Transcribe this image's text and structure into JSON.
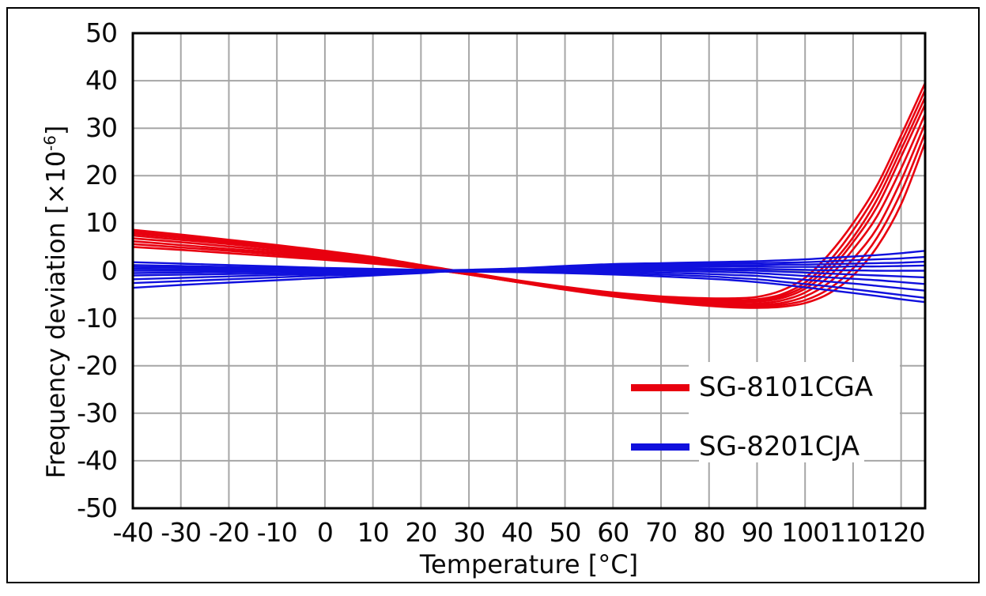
{
  "page": {
    "background_color": "#ffffff",
    "outer_border_color": "#000000"
  },
  "chart_data": {
    "type": "line",
    "title": "",
    "xlabel": "Temperature [°C]",
    "ylabel": "Frequency deviation [×10⁻⁶]",
    "ylabel_parts": {
      "prefix": "Frequency deviation [×10",
      "sup": "-6",
      "suffix": "]"
    },
    "xlim": [
      -40,
      125
    ],
    "ylim": [
      -50,
      50
    ],
    "grid": true,
    "legend_position": "inside-bottom-right",
    "x_ticks": [
      -40,
      -30,
      -20,
      -10,
      0,
      10,
      20,
      30,
      40,
      50,
      60,
      70,
      80,
      90,
      100,
      110,
      120
    ],
    "x_tick_labels": [
      "-40",
      "-30",
      "-20",
      "-10",
      "0",
      "10",
      "20",
      "30",
      "40",
      "50",
      "60",
      "70",
      "80",
      "90",
      "100",
      "110",
      "120"
    ],
    "y_ticks": [
      50,
      40,
      30,
      20,
      10,
      0,
      -10,
      -20,
      -30,
      -40,
      -50
    ],
    "y_tick_labels": [
      "50",
      "40",
      "30",
      "20",
      "10",
      "0",
      "-10",
      "-20",
      "-30",
      "-40",
      "-50"
    ],
    "colors": {
      "grid": "#a6a6a6",
      "axis": "#000000",
      "red_series": "#e8000f",
      "blue_series": "#1010dd"
    },
    "x": [
      -40,
      -30,
      -20,
      -10,
      0,
      10,
      20,
      25,
      30,
      40,
      50,
      60,
      70,
      80,
      85,
      90,
      95,
      100,
      105,
      110,
      115,
      120,
      125
    ],
    "series": [
      {
        "name": "SG-8101CGA",
        "color_key": "red_series",
        "stroke_width": 2.6,
        "lines": [
          [
            8.6,
            7.6,
            6.5,
            5.4,
            4.2,
            2.9,
            1.2,
            0.4,
            -0.4,
            -2.0,
            -3.4,
            -4.6,
            -5.4,
            -5.8,
            -5.8,
            -5.5,
            -4.2,
            -1.5,
            3.5,
            10.0,
            18.0,
            28.5,
            39.5
          ],
          [
            8.2,
            7.2,
            6.2,
            5.1,
            3.9,
            2.6,
            1.0,
            0.2,
            -0.5,
            -2.1,
            -3.6,
            -4.8,
            -5.6,
            -6.1,
            -6.2,
            -6.0,
            -5.0,
            -2.5,
            2.0,
            8.5,
            16.5,
            27.0,
            38.0
          ],
          [
            7.8,
            6.9,
            5.9,
            4.9,
            3.7,
            2.5,
            1.0,
            0.2,
            -0.6,
            -2.1,
            -3.6,
            -4.9,
            -5.8,
            -6.3,
            -6.4,
            -6.3,
            -5.4,
            -3.2,
            1.0,
            7.0,
            15.0,
            25.5,
            36.5
          ],
          [
            7.4,
            6.5,
            5.6,
            4.6,
            3.5,
            2.3,
            0.9,
            0.1,
            -0.6,
            -2.2,
            -3.7,
            -5.0,
            -5.9,
            -6.5,
            -6.6,
            -6.5,
            -5.8,
            -3.8,
            0.0,
            6.0,
            13.5,
            24.0,
            35.0
          ],
          [
            6.8,
            6.0,
            5.1,
            4.2,
            3.2,
            2.1,
            0.8,
            0.0,
            -0.7,
            -2.3,
            -3.8,
            -5.1,
            -6.1,
            -6.8,
            -7.0,
            -6.9,
            -6.3,
            -4.6,
            -1.2,
            4.5,
            11.5,
            21.5,
            33.0
          ],
          [
            6.2,
            5.4,
            4.6,
            3.8,
            2.9,
            1.9,
            0.7,
            0.0,
            -0.7,
            -2.3,
            -3.9,
            -5.2,
            -6.3,
            -7.0,
            -7.2,
            -7.2,
            -6.8,
            -5.4,
            -2.5,
            2.5,
            9.0,
            19.0,
            31.0
          ],
          [
            5.6,
            4.9,
            4.2,
            3.4,
            2.6,
            1.7,
            0.6,
            -0.1,
            -0.8,
            -2.4,
            -3.9,
            -5.3,
            -6.4,
            -7.2,
            -7.5,
            -7.5,
            -7.2,
            -6.2,
            -3.8,
            0.5,
            7.0,
            16.5,
            29.0
          ],
          [
            5.0,
            4.4,
            3.7,
            3.0,
            2.3,
            1.5,
            0.5,
            -0.1,
            -0.8,
            -2.4,
            -4.0,
            -5.4,
            -6.5,
            -7.4,
            -7.7,
            -7.8,
            -7.6,
            -6.8,
            -4.8,
            -1.0,
            5.0,
            14.0,
            27.0
          ]
        ]
      },
      {
        "name": "SG-8201CJA",
        "color_key": "blue_series",
        "stroke_width": 2.4,
        "lines": [
          [
            1.8,
            1.5,
            1.2,
            0.9,
            0.6,
            0.4,
            0.2,
            0.1,
            0.2,
            0.5,
            1.0,
            1.4,
            1.6,
            1.8,
            1.9,
            2.0,
            2.2,
            2.4,
            2.7,
            3.0,
            3.3,
            3.7,
            4.2
          ],
          [
            1.2,
            1.0,
            0.8,
            0.6,
            0.45,
            0.3,
            0.15,
            0.1,
            0.15,
            0.4,
            0.8,
            1.1,
            1.3,
            1.5,
            1.55,
            1.6,
            1.7,
            1.8,
            2.0,
            2.2,
            2.4,
            2.6,
            2.9
          ],
          [
            0.8,
            0.7,
            0.55,
            0.45,
            0.35,
            0.25,
            0.1,
            0.05,
            0.1,
            0.3,
            0.6,
            0.9,
            1.1,
            1.2,
            1.2,
            1.2,
            1.3,
            1.3,
            1.4,
            1.5,
            1.6,
            1.7,
            1.9
          ],
          [
            0.4,
            0.35,
            0.3,
            0.25,
            0.2,
            0.1,
            0.05,
            0,
            0.05,
            0.2,
            0.5,
            0.7,
            0.8,
            0.9,
            0.9,
            0.85,
            0.8,
            0.8,
            0.8,
            0.9,
            0.9,
            1.0,
            1.1
          ],
          [
            0,
            0,
            0,
            0,
            0,
            0,
            0,
            0,
            0,
            0.1,
            0.3,
            0.5,
            0.6,
            0.5,
            0.45,
            0.4,
            0.3,
            0.2,
            0.1,
            0.1,
            0,
            0,
            0
          ],
          [
            -0.5,
            -0.4,
            -0.3,
            -0.2,
            -0.15,
            -0.1,
            -0.05,
            0,
            0,
            0.05,
            0.2,
            0.3,
            0.3,
            0.2,
            0.1,
            0,
            -0.2,
            -0.4,
            -0.6,
            -0.8,
            -1.0,
            -1.2,
            -1.4
          ],
          [
            -1.0,
            -0.85,
            -0.7,
            -0.55,
            -0.4,
            -0.25,
            -0.1,
            -0.05,
            -0.05,
            0,
            0.1,
            0.1,
            0,
            -0.2,
            -0.35,
            -0.5,
            -0.8,
            -1.1,
            -1.4,
            -1.7,
            -2.0,
            -2.4,
            -2.8
          ],
          [
            -1.8,
            -1.5,
            -1.2,
            -0.9,
            -0.7,
            -0.4,
            -0.2,
            -0.1,
            -0.1,
            -0.1,
            -0.1,
            -0.2,
            -0.4,
            -0.7,
            -0.9,
            -1.1,
            -1.5,
            -1.9,
            -2.3,
            -2.7,
            -3.2,
            -3.7,
            -4.2
          ],
          [
            -2.6,
            -2.2,
            -1.8,
            -1.4,
            -1.0,
            -0.7,
            -0.3,
            -0.15,
            -0.1,
            -0.2,
            -0.3,
            -0.5,
            -0.8,
            -1.2,
            -1.5,
            -1.8,
            -2.3,
            -2.8,
            -3.3,
            -3.9,
            -4.5,
            -5.1,
            -5.7
          ],
          [
            -3.6,
            -3.0,
            -2.5,
            -2.0,
            -1.5,
            -1.0,
            -0.5,
            -0.2,
            -0.2,
            -0.3,
            -0.5,
            -0.8,
            -1.2,
            -1.7,
            -2.0,
            -2.4,
            -2.9,
            -3.5,
            -4.1,
            -4.7,
            -5.3,
            -6.0,
            -6.6
          ]
        ]
      }
    ],
    "legend": {
      "items": [
        {
          "label": "SG-8101CGA",
          "color_key": "red_series"
        },
        {
          "label": "SG-8201CJA",
          "color_key": "blue_series"
        }
      ]
    }
  }
}
